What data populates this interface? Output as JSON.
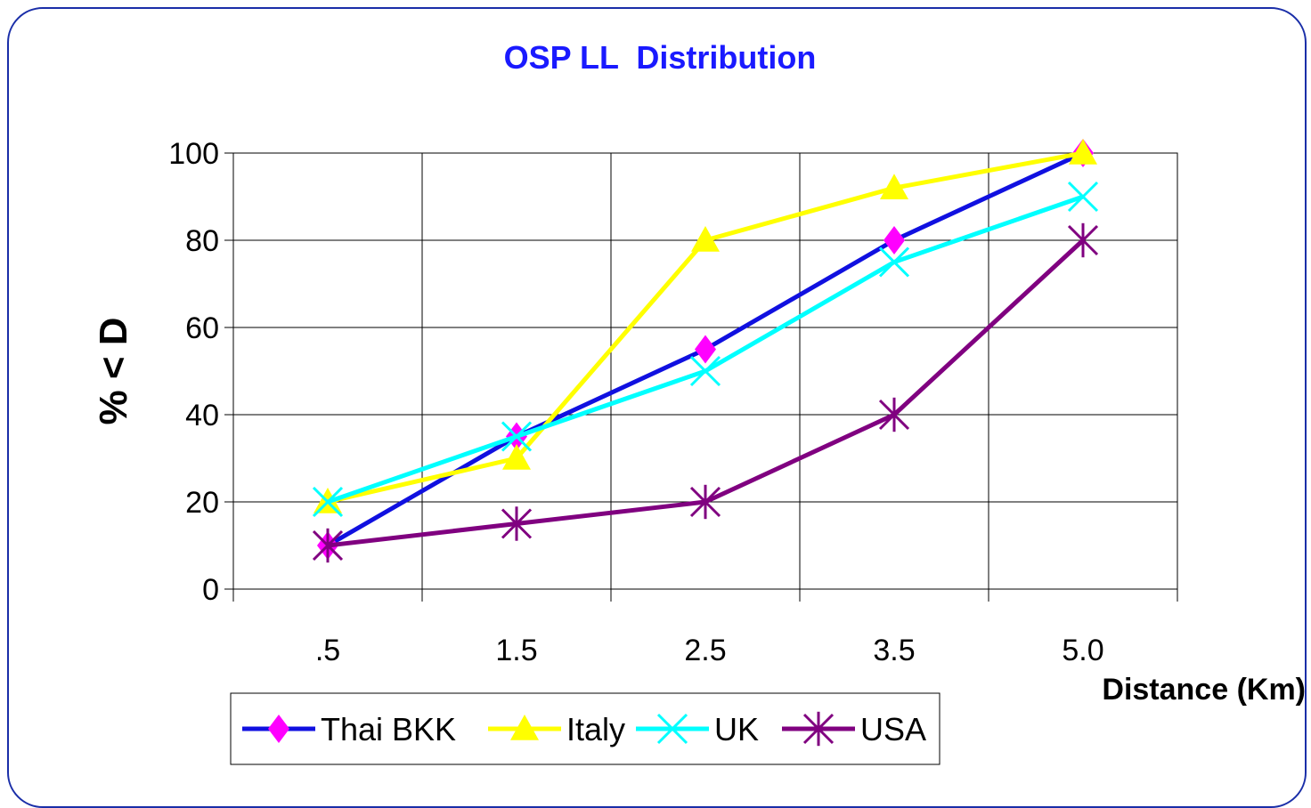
{
  "chart_data": {
    "type": "line",
    "title": "OSP LL  Distribution",
    "xlabel": "Distance (Km)",
    "ylabel": "% < D",
    "categories": [
      ".5",
      "1.5",
      "2.5",
      "3.5",
      "5.0"
    ],
    "ylim": [
      0,
      100
    ],
    "yticks": [
      "0",
      "20",
      "40",
      "60",
      "80",
      "100"
    ],
    "grid": true,
    "legend_position": "bottom",
    "title_color": "#1a1aff",
    "series": [
      {
        "name": "Thai BKK",
        "values": [
          10,
          35,
          55,
          80,
          100
        ],
        "color": "#1010e0",
        "marker_color": "#ff00ff",
        "marker": "diamond"
      },
      {
        "name": "Italy",
        "values": [
          20,
          30,
          80,
          92,
          100
        ],
        "color": "#ffff00",
        "marker_color": "#ffff00",
        "marker": "triangle"
      },
      {
        "name": "UK",
        "values": [
          20,
          35,
          50,
          75,
          90
        ],
        "color": "#00ffff",
        "marker_color": "#00ffff",
        "marker": "x"
      },
      {
        "name": "USA",
        "values": [
          10,
          15,
          20,
          40,
          80
        ],
        "color": "#800080",
        "marker_color": "#800080",
        "marker": "star"
      }
    ]
  }
}
